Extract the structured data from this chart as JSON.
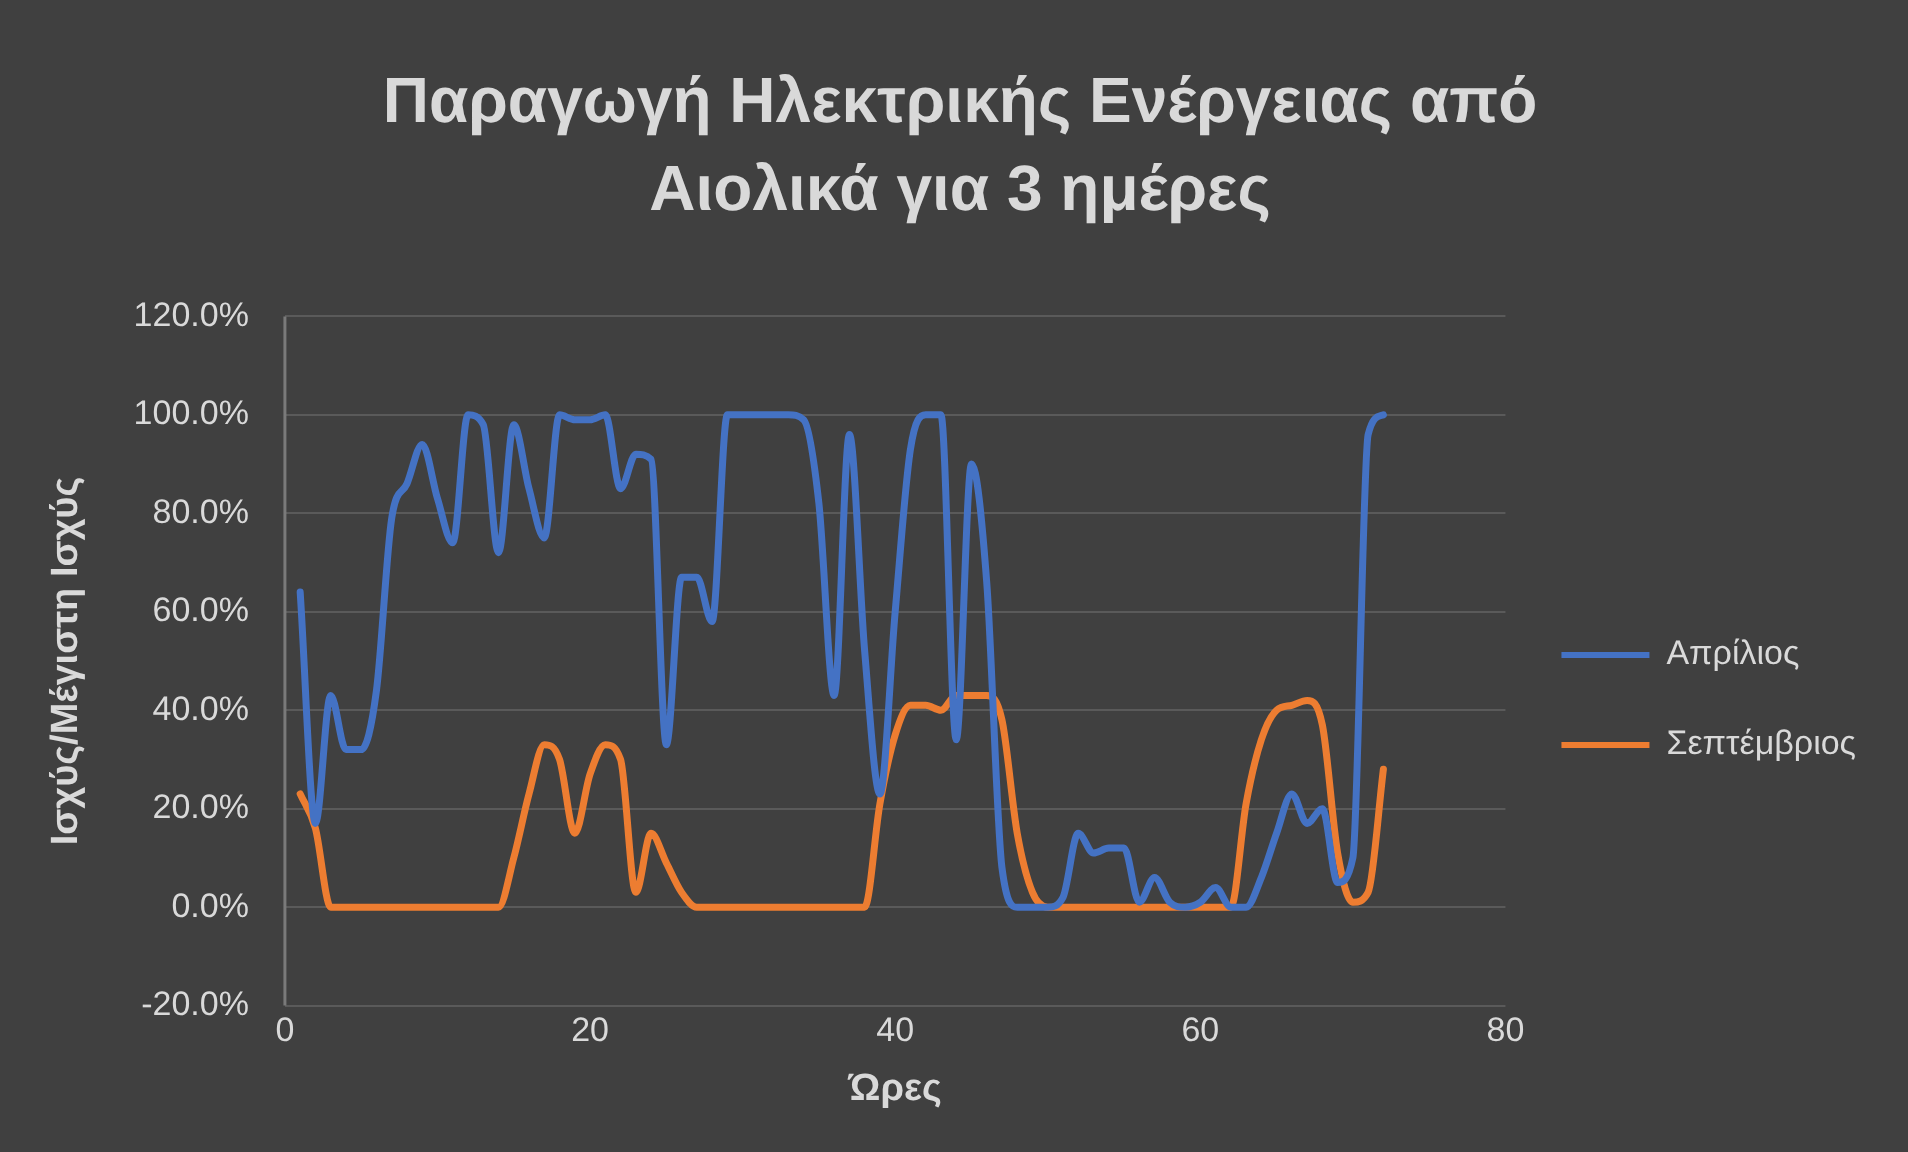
{
  "chart_data": {
    "type": "line",
    "title": "Παραγωγή Ηλεκτρικής Ενέργειας από Αιολικά για 3 ημέρες",
    "xlabel": "Ώρες",
    "ylabel": "Ισχύς/Μέγιστη Ισχύς",
    "x": [
      1,
      2,
      3,
      4,
      5,
      6,
      7,
      8,
      9,
      10,
      11,
      12,
      13,
      14,
      15,
      16,
      17,
      18,
      19,
      20,
      21,
      22,
      23,
      24,
      25,
      26,
      27,
      28,
      29,
      30,
      31,
      32,
      33,
      34,
      35,
      36,
      37,
      38,
      39,
      40,
      41,
      42,
      43,
      44,
      45,
      46,
      47,
      48,
      49,
      50,
      51,
      52,
      53,
      54,
      55,
      56,
      57,
      58,
      59,
      60,
      61,
      62,
      63,
      64,
      65,
      66,
      67,
      68,
      69,
      70,
      71,
      72
    ],
    "series": [
      {
        "name": "Απρίλιος",
        "color": "#4472c4",
        "values": [
          64,
          17,
          43,
          32,
          32,
          44,
          79,
          86,
          94,
          83,
          74,
          100,
          98,
          72,
          98,
          85,
          75,
          100,
          99,
          99,
          100,
          85,
          92,
          91,
          33,
          67,
          67,
          58,
          100,
          100,
          100,
          100,
          100,
          99,
          82,
          43,
          96,
          52,
          23,
          60,
          93,
          100,
          100,
          34,
          90,
          66,
          8,
          0,
          0,
          0,
          2,
          15,
          11,
          12,
          12,
          1,
          6,
          1,
          0,
          1,
          4,
          0,
          0,
          6,
          15,
          23,
          17,
          20,
          5,
          10,
          96,
          100
        ]
      },
      {
        "name": "Σεπτέμβριος",
        "color": "#ed7d31",
        "values": [
          23,
          16,
          0,
          0,
          0,
          0,
          0,
          0,
          0,
          0,
          0,
          0,
          0,
          0,
          10,
          23,
          33,
          30,
          15,
          27,
          33,
          30,
          3,
          15,
          9,
          3,
          0,
          0,
          0,
          0,
          0,
          0,
          0,
          0,
          0,
          0,
          0,
          0,
          21,
          35,
          41,
          41,
          40,
          43,
          43,
          43,
          38,
          15,
          3,
          0,
          0,
          0,
          0,
          0,
          0,
          0,
          0,
          0,
          0,
          0,
          0,
          0,
          21,
          34,
          40,
          41,
          42,
          37,
          11,
          1,
          3,
          28
        ]
      }
    ],
    "xlim": [
      0,
      80
    ],
    "xticks": [
      0,
      20,
      40,
      60,
      80
    ],
    "ylim": [
      -20,
      120
    ],
    "yticks": [
      {
        "value": -20,
        "label": "-20.0%"
      },
      {
        "value": 0,
        "label": "0.0%"
      },
      {
        "value": 20,
        "label": "20.0%"
      },
      {
        "value": 40,
        "label": "40.0%"
      },
      {
        "value": 60,
        "label": "60.0%"
      },
      {
        "value": 80,
        "label": "80.0%"
      },
      {
        "value": 100,
        "label": "100.0%"
      },
      {
        "value": 120,
        "label": "120.0%"
      }
    ],
    "grid": "y",
    "legend": "right",
    "marker": "none",
    "line_style": "solid"
  }
}
